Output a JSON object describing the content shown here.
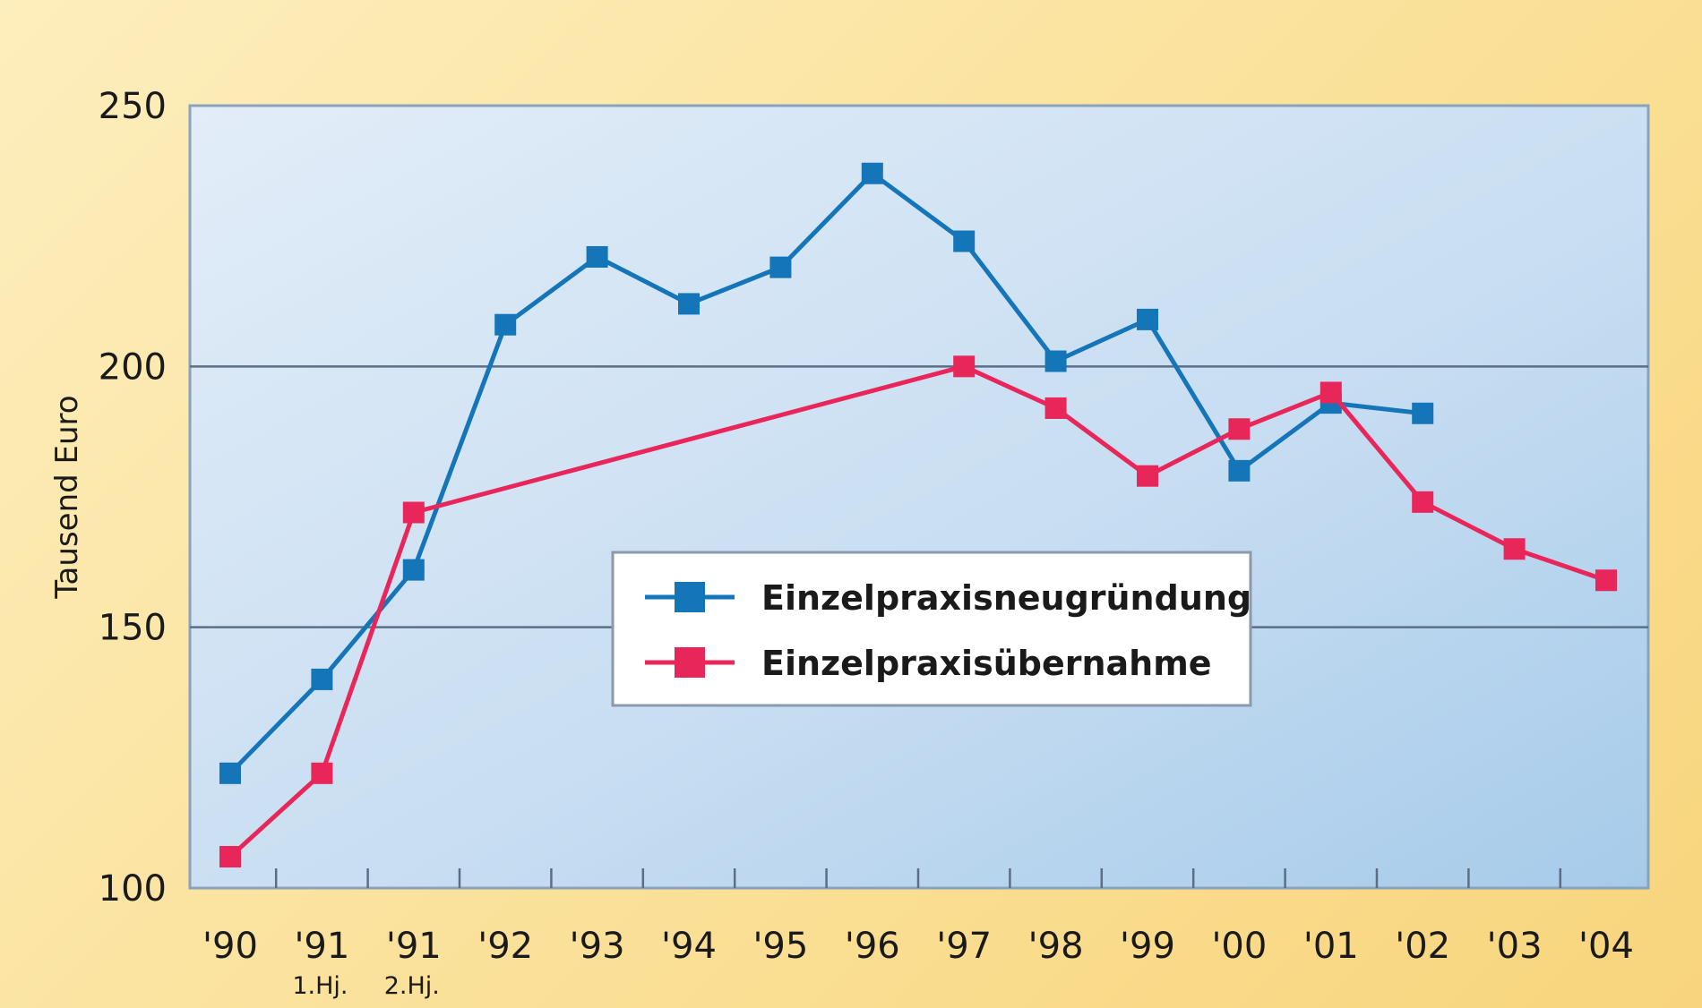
{
  "chart_data": {
    "type": "line",
    "ylabel": "Tausend Euro",
    "ylim": [
      100,
      250
    ],
    "yticks": [
      100,
      150,
      200,
      250
    ],
    "grid": "horizontal",
    "legend_position": "center",
    "categories": [
      {
        "label": "'90",
        "sub": ""
      },
      {
        "label": "'91",
        "sub": "1.Hj."
      },
      {
        "label": "'91",
        "sub": "2.Hj."
      },
      {
        "label": "'92",
        "sub": ""
      },
      {
        "label": "'93",
        "sub": ""
      },
      {
        "label": "'94",
        "sub": ""
      },
      {
        "label": "'95",
        "sub": ""
      },
      {
        "label": "'96",
        "sub": ""
      },
      {
        "label": "'97",
        "sub": ""
      },
      {
        "label": "'98",
        "sub": ""
      },
      {
        "label": "'99",
        "sub": ""
      },
      {
        "label": "'00",
        "sub": ""
      },
      {
        "label": "'01",
        "sub": ""
      },
      {
        "label": "'02",
        "sub": ""
      },
      {
        "label": "'03",
        "sub": ""
      },
      {
        "label": "'04",
        "sub": ""
      }
    ],
    "series": [
      {
        "name": "Einzelpraxisneugründung",
        "color": "#1476b8",
        "values": [
          122,
          140,
          161,
          208,
          221,
          212,
          219,
          237,
          224,
          201,
          209,
          180,
          193,
          191,
          null,
          null
        ]
      },
      {
        "name": "Einzelpraxisübernahme",
        "color": "#e8265a",
        "values": [
          106,
          122,
          172,
          null,
          null,
          null,
          null,
          null,
          200,
          192,
          179,
          188,
          195,
          174,
          165,
          159
        ]
      }
    ],
    "colors": {
      "plot_background_light": "#ddeaf6",
      "plot_background_dark": "#a9cdea",
      "gridline": "#5a6f86",
      "frame": "#8aa2bb"
    }
  }
}
